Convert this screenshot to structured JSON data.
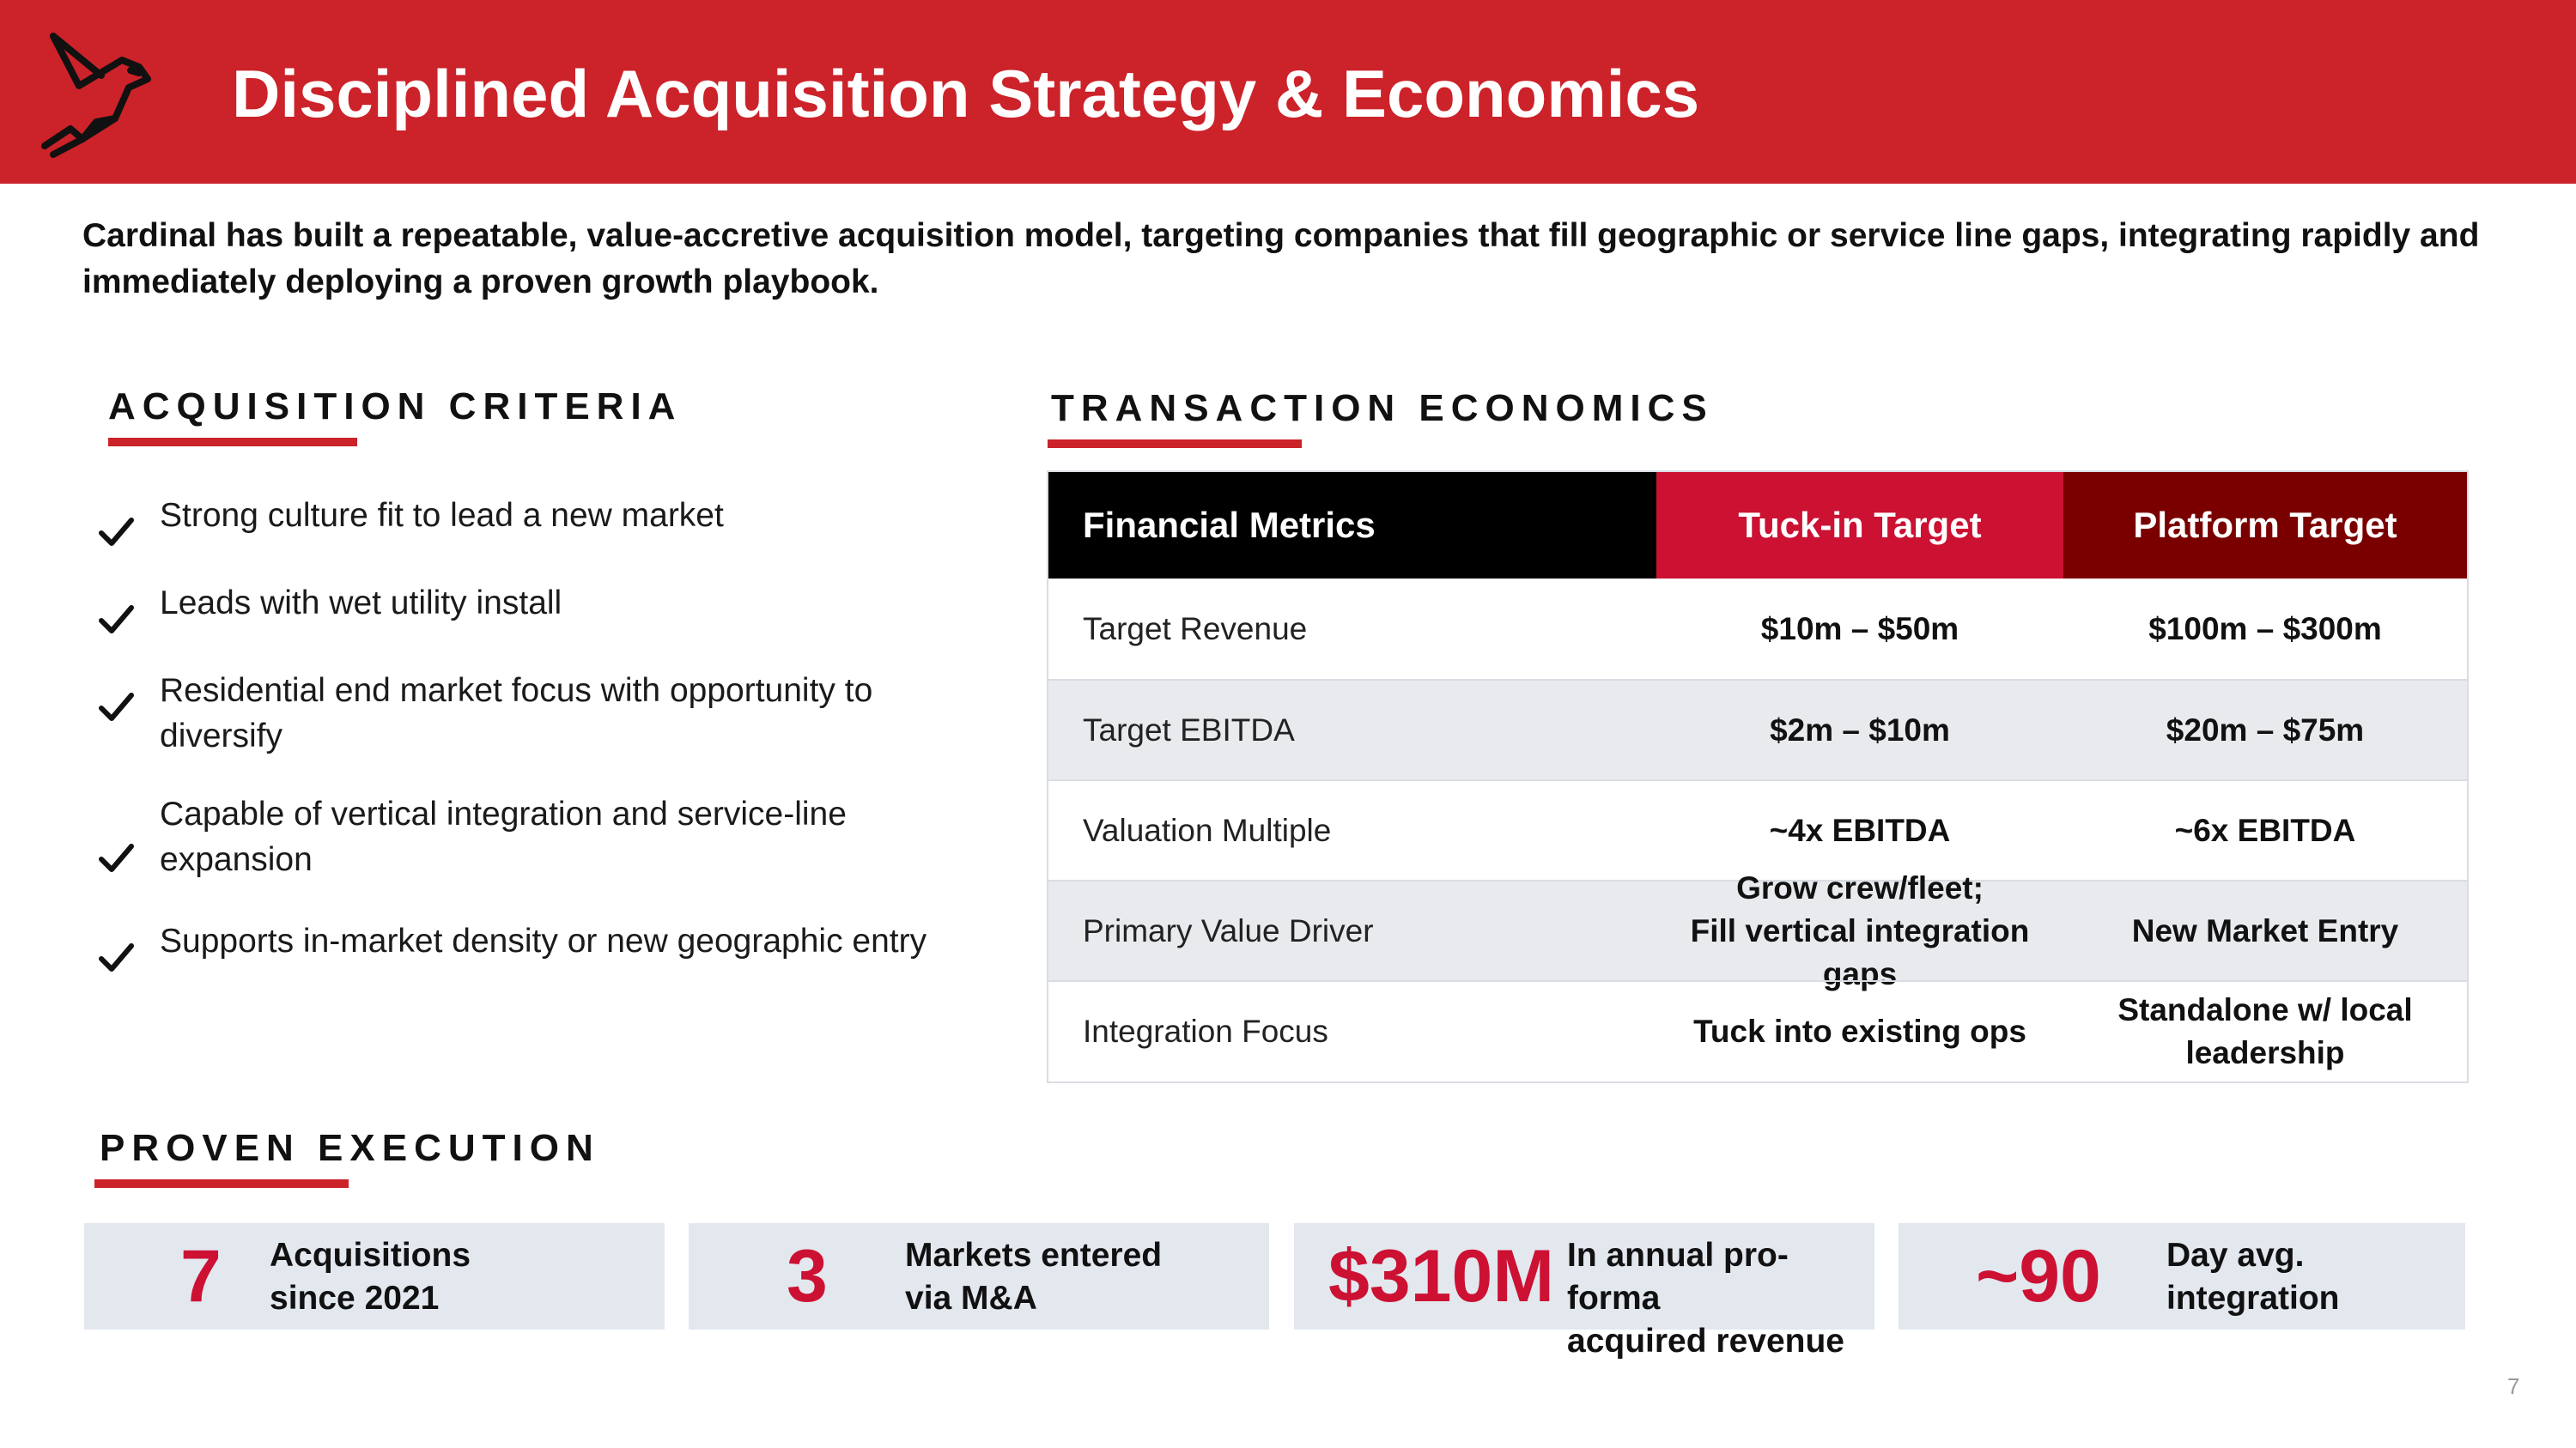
{
  "header": {
    "logo_icon": "cardinal-bird-icon",
    "title": "Disciplined Acquisition Strategy & Economics",
    "color": "#cc2229"
  },
  "intro": "Cardinal has built a repeatable, value-accretive acquisition model, targeting companies that fill geographic or service line gaps, integrating rapidly and immediately deploying a proven growth playbook.",
  "criteria": {
    "title": "ACQUISITION CRITERIA",
    "items": [
      "Strong culture fit to lead a new market",
      "Leads with wet utility install",
      "Residential end market focus with opportunity to diversify",
      "Capable of vertical integration and service-line expansion",
      "Supports in-market density or new geographic entry"
    ]
  },
  "economics": {
    "title": "TRANSACTION ECONOMICS",
    "headers": [
      "Financial Metrics",
      "Tuck-in Target",
      "Platform Target"
    ],
    "rows": [
      {
        "metric": "Target Revenue",
        "tuckin": "$10m – $50m",
        "platform": "$100m – $300m"
      },
      {
        "metric": "Target EBITDA",
        "tuckin": "$2m – $10m",
        "platform": "$20m – $75m"
      },
      {
        "metric": "Valuation Multiple",
        "tuckin": "~4x EBITDA",
        "platform": "~6x EBITDA"
      },
      {
        "metric": "Primary Value Driver",
        "tuckin_line1": "Grow crew/fleet;",
        "tuckin_line2": "Fill vertical integration gaps",
        "platform": "New Market Entry"
      },
      {
        "metric": "Integration Focus",
        "tuckin": "Tuck into existing ops",
        "platform_line1": "Standalone w/ local",
        "platform_line2": "leadership"
      }
    ]
  },
  "execution": {
    "title": "PROVEN EXECUTION",
    "stats": [
      {
        "value": "7",
        "label_line1": "Acquisitions",
        "label_line2": "since 2021"
      },
      {
        "value": "3",
        "label_line1": "Markets entered",
        "label_line2": "via M&A"
      },
      {
        "value": "$310M",
        "label_line1": "In annual pro-forma",
        "label_line2": "acquired revenue"
      },
      {
        "value": "~90",
        "label_line1": "Day avg.",
        "label_line2": "integration"
      }
    ]
  },
  "page_number": "7"
}
